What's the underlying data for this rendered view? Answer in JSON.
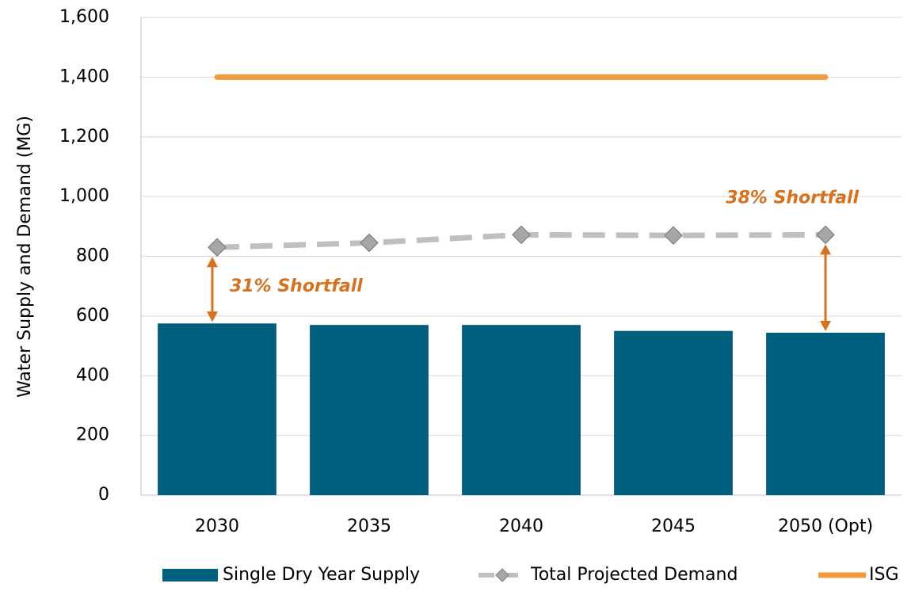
{
  "chart_data": {
    "type": "bar",
    "y_label": "Water Supply and Demand (MG)",
    "categories": [
      "2030",
      "2035",
      "2040",
      "2045",
      "2050 (Opt)"
    ],
    "series": [
      {
        "name": "Single Dry Year Supply",
        "type": "bar",
        "color": "#005f7f",
        "values": [
          575,
          570,
          570,
          550,
          544
        ]
      },
      {
        "name": "Total Projected Demand",
        "type": "line",
        "dashed": true,
        "marker": "diamond",
        "color": "#bfbfbf",
        "marker_color": "#a6a6a6",
        "values": [
          830,
          845,
          872,
          870,
          872
        ]
      },
      {
        "name": "ISG",
        "type": "line",
        "color": "#f39a3c",
        "values": [
          1400,
          1400,
          1400,
          1400,
          1400
        ]
      }
    ],
    "annotations": [
      "31% Shortfall",
      "38% Shortfall"
    ],
    "annotation_color": "#d9711c",
    "ylim": [
      0,
      1600
    ],
    "yticks": [
      0,
      200,
      400,
      600,
      800,
      {
        "value": 1000,
        "label": "1,000"
      },
      {
        "value": 1200,
        "label": "1,200"
      },
      {
        "value": 1400,
        "label": "1,400"
      },
      {
        "value": 1600,
        "label": "1,600"
      }
    ],
    "grid": true,
    "legend": "bottom"
  }
}
